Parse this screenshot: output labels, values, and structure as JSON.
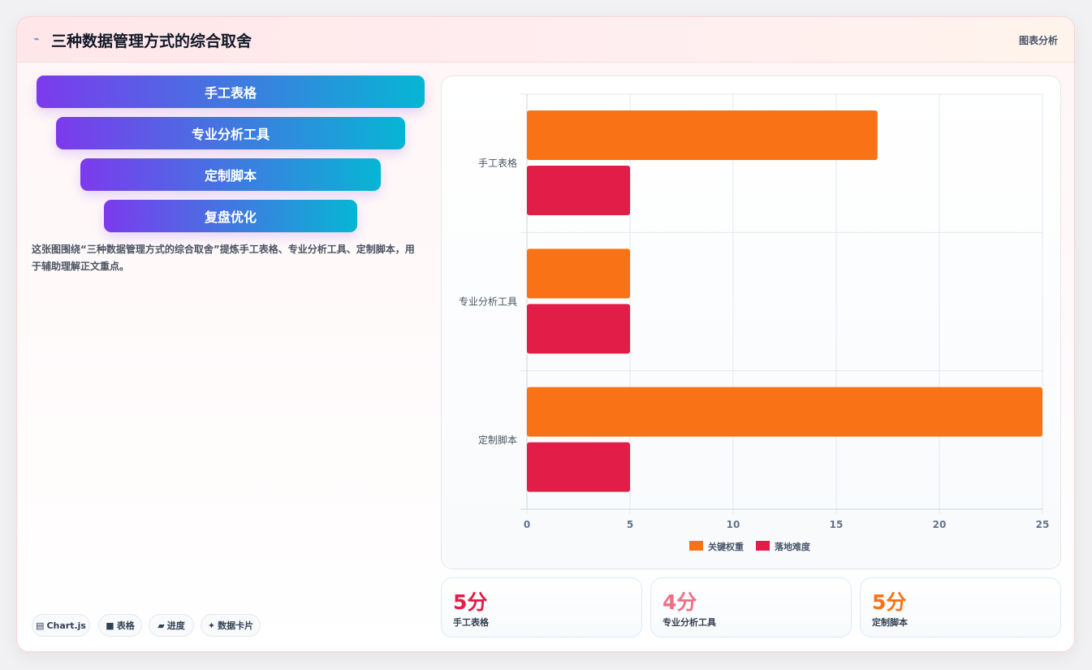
{
  "header": {
    "icon": "chart-spark-icon",
    "title": "三种数据管理方式的综合取舍",
    "tag": "图表分析"
  },
  "funnel": {
    "items": [
      "手工表格",
      "专业分析工具",
      "定制脚本",
      "复盘优化"
    ]
  },
  "description": "这张图围绕“三种数据管理方式的综合取舍”提炼手工表格、专业分析工具、定制脚本，用于辅助理解正文重点。",
  "chips": [
    {
      "icon": "▤",
      "label": "Chart.js"
    },
    {
      "icon": "■",
      "label": "表格"
    },
    {
      "icon": "▰",
      "label": "进度"
    },
    {
      "icon": "✦",
      "label": "数据卡片"
    }
  ],
  "chart_data": {
    "type": "bar",
    "orientation": "horizontal",
    "categories": [
      "手工表格",
      "专业分析工具",
      "定制脚本"
    ],
    "series": [
      {
        "name": "关键权重",
        "values": [
          17,
          5,
          25
        ],
        "color": "#f97316"
      },
      {
        "name": "落地难度",
        "values": [
          5,
          5,
          5
        ],
        "color": "#e11d48"
      }
    ],
    "xlim": [
      0,
      25
    ],
    "xticks": [
      0,
      5,
      10,
      15,
      20,
      25
    ],
    "grid": true,
    "legend": "bottom"
  },
  "stats": [
    {
      "value": "5分",
      "label": "手工表格",
      "color": "#e11d48"
    },
    {
      "value": "4分",
      "label": "专业分析工具",
      "color": "#f06f87"
    },
    {
      "value": "5分",
      "label": "定制脚本",
      "color": "#f97316"
    }
  ]
}
